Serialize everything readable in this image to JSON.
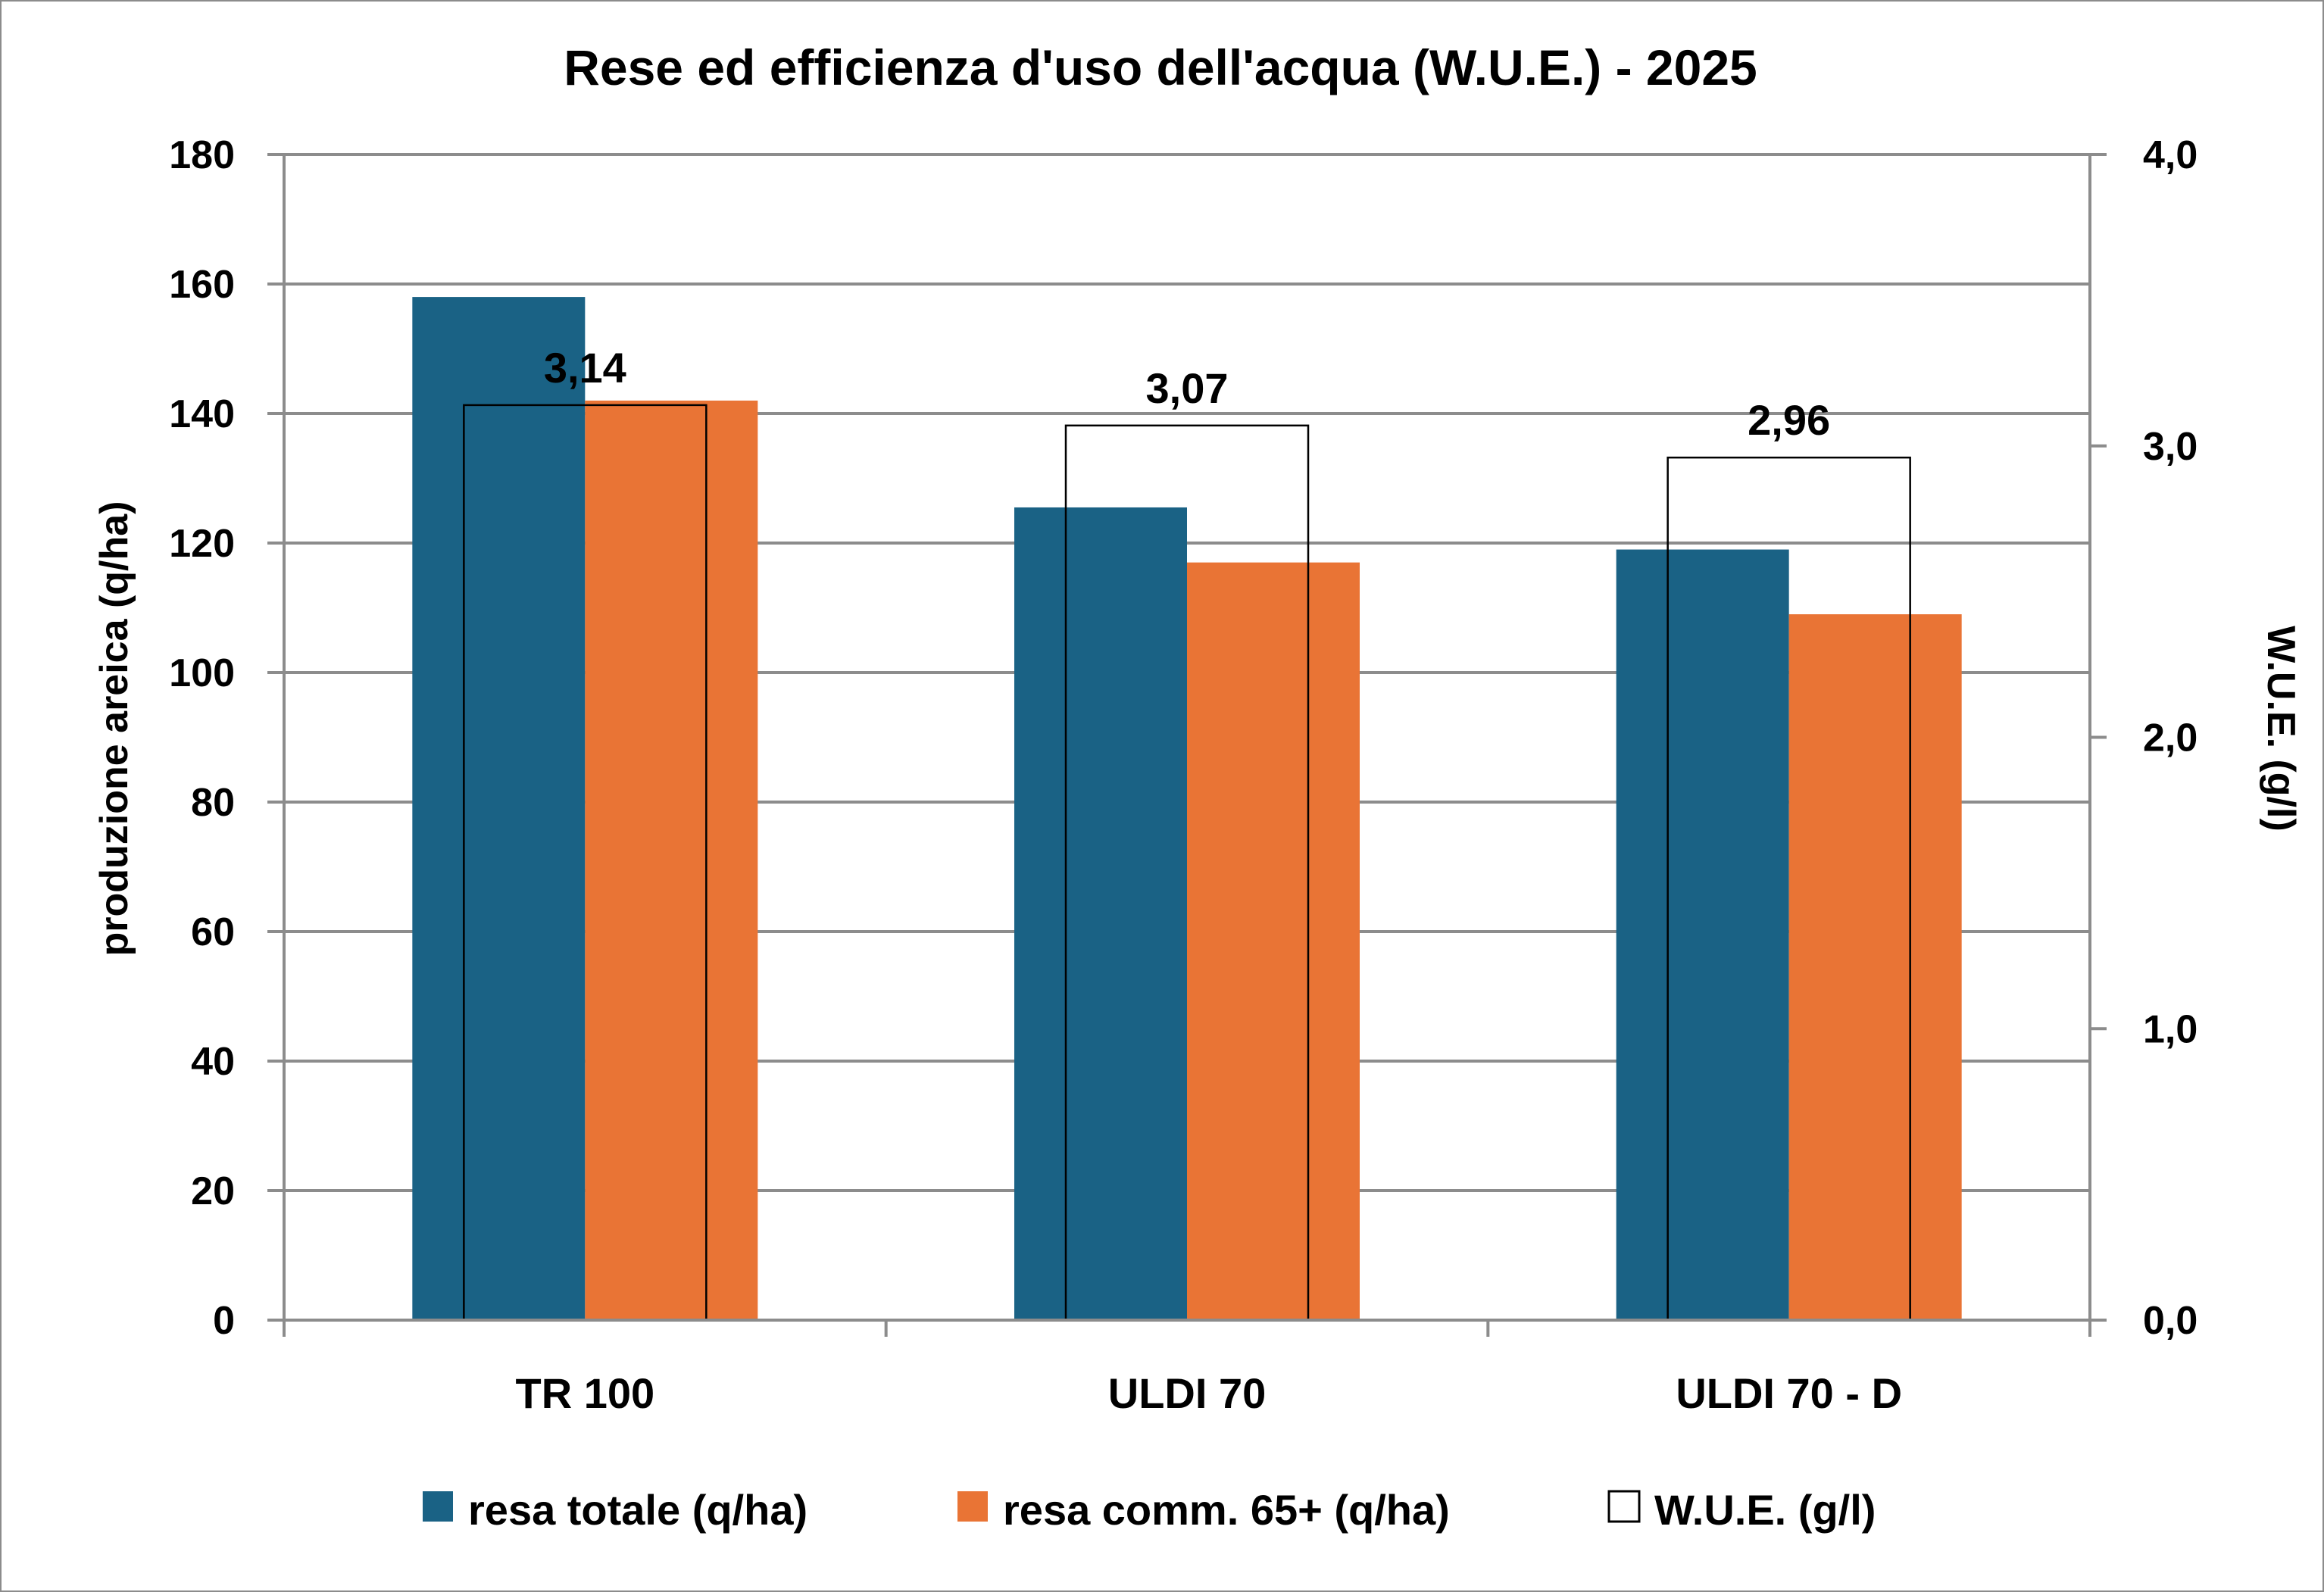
{
  "chart_data": {
    "type": "bar",
    "title": "Rese ed efficienza d'uso dell'acqua (W.U.E.) - 2025",
    "categories": [
      "TR 100",
      "ULDI 70",
      "ULDI 70 - D"
    ],
    "series": [
      {
        "name": "resa totale (q/ha)",
        "axis": "left",
        "color": "#1a6285",
        "values": [
          158,
          125.5,
          119
        ]
      },
      {
        "name": "resa comm. 65+ (q/ha)",
        "axis": "left",
        "color": "#e97435",
        "values": [
          142,
          117,
          109
        ]
      },
      {
        "name": "W.U.E. (g/l)",
        "axis": "right",
        "color": "#ffffff",
        "outline": "#000000",
        "values": [
          3.14,
          3.07,
          2.96
        ],
        "data_labels": [
          "3,14",
          "3,07",
          "2,96"
        ]
      }
    ],
    "ylabel": "produzione areica (q/ha)",
    "y2label": "W.U.E. (g/l)",
    "ylim": [
      0,
      180
    ],
    "y2lim": [
      0,
      4
    ],
    "yticks": [
      0,
      20,
      40,
      60,
      80,
      100,
      120,
      140,
      160,
      180
    ],
    "ytick_labels": [
      "0",
      "20",
      "40",
      "60",
      "80",
      "100",
      "120",
      "140",
      "160",
      "180"
    ],
    "y2ticks": [
      0,
      1,
      2,
      3,
      4
    ],
    "y2tick_labels": [
      "0,0",
      "1,0",
      "2,0",
      "3,0",
      "4,0"
    ],
    "grid": true,
    "legend_position": "bottom"
  }
}
